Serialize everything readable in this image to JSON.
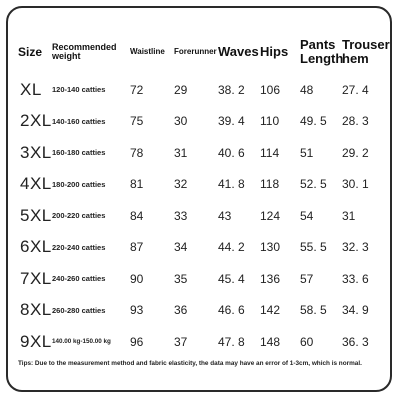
{
  "headers": {
    "size": "Size",
    "recommended_weight": "Recommended weight",
    "waistline": "Waistline",
    "forerunner": "Forerunner",
    "waves": "Waves",
    "hips": "Hips",
    "pants_length": "Pants Length",
    "trouser_hem": "Trouser hem"
  },
  "rows": [
    {
      "size": "XL",
      "weight": "120-140 catties",
      "waistline": "72",
      "forerunner": "29",
      "waves": "38. 2",
      "hips": "106",
      "pants_length": "48",
      "trouser_hem": "27. 4"
    },
    {
      "size": "2XL",
      "weight": "140-160 catties",
      "waistline": "75",
      "forerunner": "30",
      "waves": "39. 4",
      "hips": "110",
      "pants_length": "49. 5",
      "trouser_hem": "28. 3"
    },
    {
      "size": "3XL",
      "weight": "160-180 catties",
      "waistline": "78",
      "forerunner": "31",
      "waves": "40. 6",
      "hips": "114",
      "pants_length": "51",
      "trouser_hem": "29. 2"
    },
    {
      "size": "4XL",
      "weight": "180-200 catties",
      "waistline": "81",
      "forerunner": "32",
      "waves": "41. 8",
      "hips": "118",
      "pants_length": "52. 5",
      "trouser_hem": "30. 1"
    },
    {
      "size": "5XL",
      "weight": "200-220 catties",
      "waistline": "84",
      "forerunner": "33",
      "waves": "43",
      "hips": "124",
      "pants_length": "54",
      "trouser_hem": "31"
    },
    {
      "size": "6XL",
      "weight": "220-240 catties",
      "waistline": "87",
      "forerunner": "34",
      "waves": "44. 2",
      "hips": "130",
      "pants_length": "55. 5",
      "trouser_hem": "32. 3"
    },
    {
      "size": "7XL",
      "weight": "240-260 catties",
      "waistline": "90",
      "forerunner": "35",
      "waves": "45. 4",
      "hips": "136",
      "pants_length": "57",
      "trouser_hem": "33. 6"
    },
    {
      "size": "8XL",
      "weight": "260-280 catties",
      "waistline": "93",
      "forerunner": "36",
      "waves": "46. 6",
      "hips": "142",
      "pants_length": "58. 5",
      "trouser_hem": "34. 9"
    },
    {
      "size": "9XL",
      "weight": "140.00 kg-150.00 kg",
      "waistline": "96",
      "forerunner": "37",
      "waves": "47. 8",
      "hips": "148",
      "pants_length": "60",
      "trouser_hem": "36. 3"
    }
  ],
  "tips": "Tips: Due to the measurement method and fabric elasticity, the data may have an error of 1-3cm, which is normal."
}
